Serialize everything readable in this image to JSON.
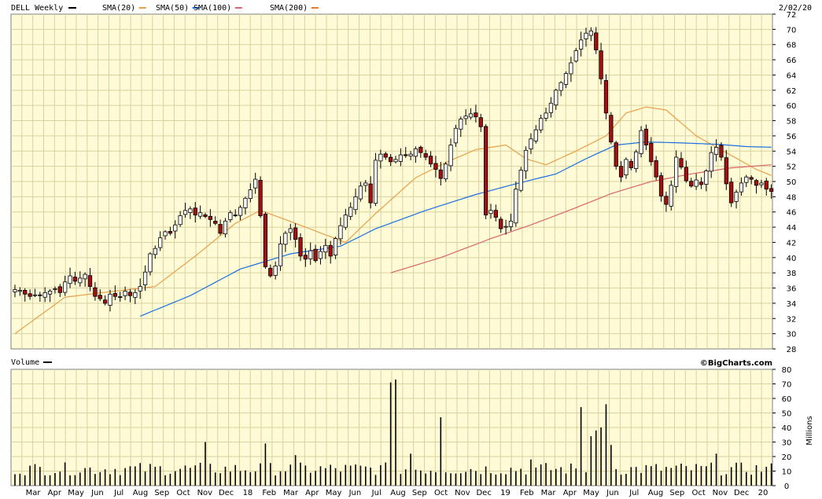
{
  "header": {
    "symbol": "DELL Weekly",
    "date": "2/02/20",
    "indicators": [
      {
        "label": "SMA(20)",
        "color": "#e8a04a"
      },
      {
        "label": "SMA(50)",
        "color": "#1a6fe0"
      },
      {
        "label": "SMA(100)",
        "color": "#d9646b"
      },
      {
        "label": "SMA(200)",
        "color": "#e87a2c"
      }
    ]
  },
  "volume_panel": {
    "title": "Volume",
    "watermark": "©BigCharts.com",
    "unit_label": "Millions"
  },
  "chart_data": {
    "type": "candlestick",
    "price_axis": {
      "ylim": [
        28,
        72
      ],
      "ticks": [
        28,
        30,
        32,
        34,
        36,
        38,
        40,
        42,
        44,
        46,
        48,
        50,
        52,
        54,
        56,
        58,
        60,
        62,
        64,
        66,
        68,
        70,
        72
      ]
    },
    "volume_axis": {
      "ylim": [
        0,
        80
      ],
      "ticks": [
        0,
        10,
        20,
        30,
        40,
        50,
        60,
        70,
        80
      ]
    },
    "x_labels": [
      "Mar",
      "Apr",
      "May",
      "Jun",
      "Jul",
      "Aug",
      "Sep",
      "Oct",
      "Nov",
      "Dec",
      "18",
      "Feb",
      "Mar",
      "Apr",
      "May",
      "Jun",
      "Jul",
      "Aug",
      "Sep",
      "Oct",
      "Nov",
      "Dec",
      "19",
      "Feb",
      "Mar",
      "Apr",
      "May",
      "Jun",
      "Jul",
      "Aug",
      "Sep",
      "Oct",
      "Nov",
      "Dec",
      "20"
    ],
    "weeks": 152,
    "close": [
      35.8,
      35.7,
      35.2,
      34.9,
      35.1,
      35.0,
      35.4,
      35.6,
      35.9,
      35.4,
      36.8,
      37.6,
      36.9,
      37.3,
      37.8,
      36.2,
      34.9,
      34.6,
      34.0,
      35.2,
      34.9,
      34.8,
      35.6,
      35.0,
      35.4,
      36.2,
      38.1,
      40.5,
      41.2,
      42.6,
      43.4,
      43.2,
      44.3,
      45.5,
      46.2,
      46.4,
      45.6,
      45.9,
      45.4,
      45.0,
      44.5,
      43.2,
      44.8,
      45.9,
      45.6,
      46.6,
      47.8,
      48.9,
      50.3,
      45.5,
      38.8,
      37.6,
      38.9,
      41.8,
      43.2,
      43.8,
      42.4,
      40.2,
      39.8,
      40.9,
      39.6,
      40.8,
      41.6,
      40.2,
      42.5,
      44.2,
      45.6,
      46.6,
      48.0,
      49.4,
      49.8,
      47.2,
      52.8,
      53.6,
      53.2,
      52.6,
      52.9,
      53.5,
      53.4,
      53.6,
      54.3,
      53.8,
      53.2,
      52.3,
      51.6,
      50.4,
      52.3,
      54.8,
      57.0,
      58.2,
      58.6,
      58.9,
      58.5,
      57.2,
      45.6,
      46.2,
      45.3,
      43.8,
      44.1,
      44.8,
      49.0,
      51.5,
      54.1,
      55.6,
      56.8,
      58.3,
      59.0,
      60.3,
      62.0,
      63.0,
      64.2,
      65.6,
      67.2,
      68.6,
      69.5,
      69.8,
      67.3,
      63.5,
      59.0,
      55.2,
      52.0,
      50.6,
      52.9,
      51.8,
      53.9,
      56.7,
      54.8,
      52.6,
      50.6,
      48.1,
      47.0,
      49.5,
      53.2,
      51.9,
      50.1,
      49.4,
      50.2,
      49.6,
      51.4,
      53.8,
      54.5,
      53.2,
      49.7,
      47.2,
      48.6,
      49.8,
      50.6,
      50.3,
      49.5,
      49.8,
      49.0,
      48.7
    ],
    "sma_20": [
      [
        0,
        30.0
      ],
      [
        10,
        34.8
      ],
      [
        20,
        35.6
      ],
      [
        28,
        36.2
      ],
      [
        36,
        40.2
      ],
      [
        44,
        44.5
      ],
      [
        49,
        46.2
      ],
      [
        54,
        45.0
      ],
      [
        60,
        43.5
      ],
      [
        66,
        42.0
      ],
      [
        72,
        45.8
      ],
      [
        80,
        50.5
      ],
      [
        86,
        52.5
      ],
      [
        92,
        54.2
      ],
      [
        98,
        54.8
      ],
      [
        102,
        53.0
      ],
      [
        106,
        52.2
      ],
      [
        112,
        54.0
      ],
      [
        118,
        56.0
      ],
      [
        122,
        59.0
      ],
      [
        126,
        59.8
      ],
      [
        130,
        59.4
      ],
      [
        136,
        56.0
      ],
      [
        142,
        53.8
      ],
      [
        148,
        51.6
      ],
      [
        151,
        50.8
      ]
    ],
    "sma_50": [
      [
        25,
        32.3
      ],
      [
        35,
        35.0
      ],
      [
        45,
        38.5
      ],
      [
        55,
        40.5
      ],
      [
        65,
        41.5
      ],
      [
        72,
        43.8
      ],
      [
        82,
        46.2
      ],
      [
        92,
        48.3
      ],
      [
        100,
        49.7
      ],
      [
        108,
        51.0
      ],
      [
        114,
        53.0
      ],
      [
        120,
        54.8
      ],
      [
        126,
        55.2
      ],
      [
        132,
        55.1
      ],
      [
        140,
        54.9
      ],
      [
        146,
        54.6
      ],
      [
        151,
        54.5
      ]
    ],
    "sma_100": [
      [
        75,
        38.0
      ],
      [
        85,
        40.0
      ],
      [
        95,
        42.5
      ],
      [
        103,
        44.3
      ],
      [
        111,
        46.3
      ],
      [
        119,
        48.4
      ],
      [
        127,
        50.0
      ],
      [
        135,
        51.0
      ],
      [
        143,
        51.8
      ],
      [
        151,
        52.2
      ]
    ]
  }
}
